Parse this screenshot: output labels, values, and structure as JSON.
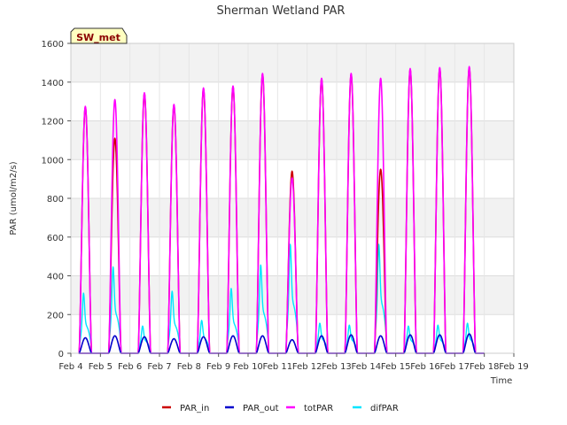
{
  "chart_data": {
    "type": "line",
    "title": "Sherman Wetland PAR",
    "badge": "SW_met",
    "xlabel": "Time",
    "ylabel": "PAR (umol/m2/s)",
    "ylim": [
      0,
      1600
    ],
    "yticks": [
      0,
      200,
      400,
      600,
      800,
      1000,
      1200,
      1400,
      1600
    ],
    "xlim": [
      4,
      19
    ],
    "xticks": [
      "Feb 4",
      "Feb 5",
      "Feb 6",
      "Feb 7",
      "Feb 8",
      "Feb 9",
      "Feb 10",
      "Feb 11",
      "Feb 12",
      "Feb 13",
      "Feb 14",
      "Feb 15",
      "Feb 16",
      "Feb 17",
      "Feb 18",
      "Feb 19"
    ],
    "grid": true,
    "legend_position": "bottom",
    "days": [
      5,
      6,
      7,
      8,
      9,
      10,
      11,
      12,
      13,
      14,
      15,
      16,
      17,
      18
    ],
    "series": [
      {
        "name": "PAR_in",
        "color": "#cc0000",
        "daily_peak": [
          1270,
          1110,
          1340,
          1280,
          1365,
          1375,
          1440,
          940,
          1415,
          1440,
          950,
          1465,
          1470,
          1475
        ]
      },
      {
        "name": "PAR_out",
        "color": "#0000cc",
        "daily_peak": [
          80,
          90,
          85,
          75,
          85,
          90,
          90,
          70,
          90,
          95,
          90,
          95,
          95,
          100
        ]
      },
      {
        "name": "totPAR",
        "color": "#ff00ff",
        "daily_peak": [
          1275,
          1310,
          1345,
          1285,
          1370,
          1380,
          1445,
          905,
          1420,
          1445,
          1420,
          1470,
          1475,
          1480
        ]
      },
      {
        "name": "difPAR",
        "color": "#00e5ff",
        "daily_peak": [
          320,
          460,
          145,
          330,
          175,
          345,
          470,
          580,
          160,
          150,
          580,
          145,
          150,
          160
        ]
      }
    ]
  }
}
